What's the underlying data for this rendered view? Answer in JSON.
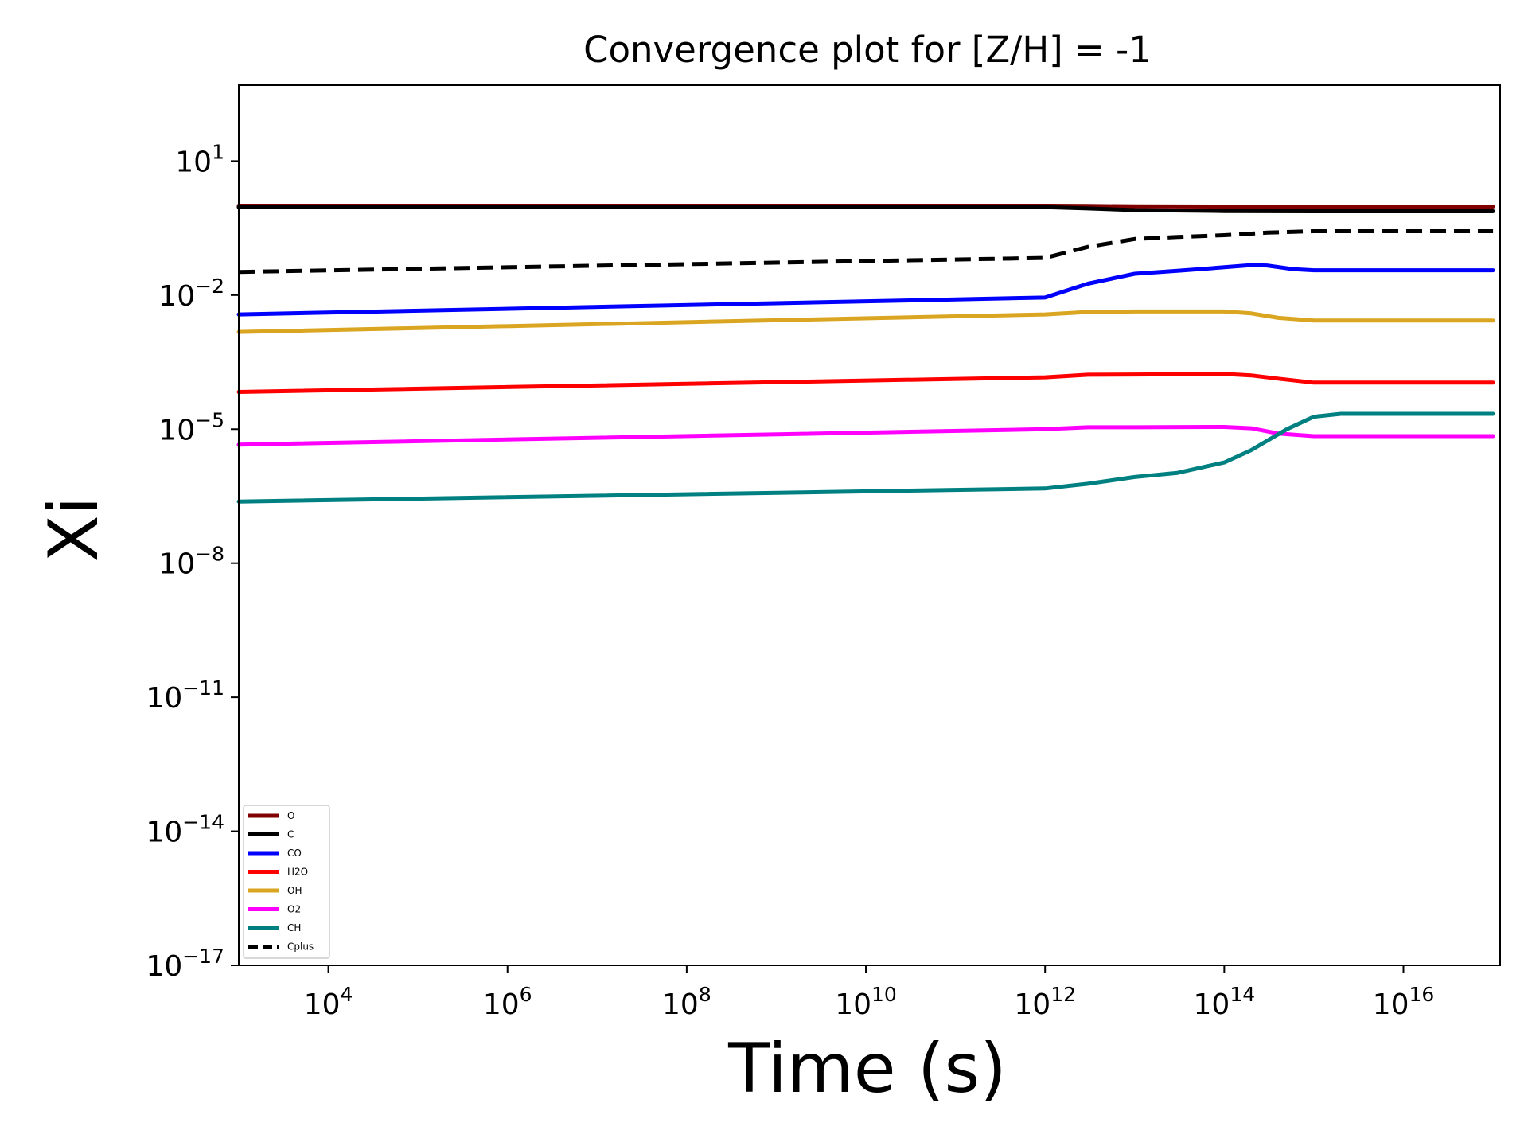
{
  "chart_data": {
    "type": "line",
    "title": "Convergence plot for [Z/H] = -1",
    "xlabel": "Time (s)",
    "ylabel": "Xi",
    "xscale": "log",
    "yscale": "log",
    "xlim": [
      1000,
      1.2e+17
    ],
    "ylim": [
      1e-17,
      500
    ],
    "xticks": [
      {
        "value": 10000.0,
        "base": "10",
        "exp": "4"
      },
      {
        "value": 1000000.0,
        "base": "10",
        "exp": "6"
      },
      {
        "value": 100000000.0,
        "base": "10",
        "exp": "8"
      },
      {
        "value": 10000000000.0,
        "base": "10",
        "exp": "10"
      },
      {
        "value": 1000000000000.0,
        "base": "10",
        "exp": "12"
      },
      {
        "value": 100000000000000.0,
        "base": "10",
        "exp": "14"
      },
      {
        "value": 1e+16,
        "base": "10",
        "exp": "16"
      }
    ],
    "yticks": [
      {
        "value": 10,
        "base": "10",
        "exp": "1"
      },
      {
        "value": 0.01,
        "base": "10",
        "exp": "−2"
      },
      {
        "value": 1e-05,
        "base": "10",
        "exp": "−5"
      },
      {
        "value": 1e-08,
        "base": "10",
        "exp": "−8"
      },
      {
        "value": 1e-11,
        "base": "10",
        "exp": "−11"
      },
      {
        "value": 1e-14,
        "base": "10",
        "exp": "−14"
      },
      {
        "value": 1e-17,
        "base": "10",
        "exp": "−17"
      }
    ],
    "grid": false,
    "legend_position": "bottom-left",
    "series": [
      {
        "name": "O",
        "color": "#800000",
        "dash": false,
        "x": [
          1000,
          1000000000000.0,
          3000000000000.0,
          10000000000000.0,
          100000000000000.0,
          1000000000000000.0,
          1e+17
        ],
        "y": [
          1.0,
          1.0,
          0.99,
          0.97,
          0.96,
          0.96,
          0.96
        ]
      },
      {
        "name": "C",
        "color": "#000000",
        "dash": false,
        "x": [
          1000,
          1000000000000.0,
          3000000000000.0,
          10000000000000.0,
          100000000000000.0,
          1000000000000000.0,
          1e+17
        ],
        "y": [
          0.93,
          0.93,
          0.87,
          0.8,
          0.76,
          0.75,
          0.75
        ]
      },
      {
        "name": "CO",
        "color": "#0000ff",
        "dash": false,
        "x": [
          1000,
          1000000000000.0,
          3000000000000.0,
          10000000000000.0,
          30000000000000.0,
          100000000000000.0,
          200000000000000.0,
          300000000000000.0,
          600000000000000.0,
          1000000000000000.0,
          1e+17
        ],
        "y": [
          0.0037,
          0.0088,
          0.018,
          0.03,
          0.035,
          0.042,
          0.047,
          0.046,
          0.038,
          0.036,
          0.036
        ]
      },
      {
        "name": "H2O",
        "color": "#ff0000",
        "dash": false,
        "x": [
          1000,
          1000000000000.0,
          3000000000000.0,
          10000000000000.0,
          100000000000000.0,
          200000000000000.0,
          400000000000000.0,
          1000000000000000.0,
          1e+17
        ],
        "y": [
          6.8e-05,
          0.000145,
          0.000165,
          0.000167,
          0.000172,
          0.00016,
          0.000135,
          0.00011,
          0.00011
        ]
      },
      {
        "name": "OH",
        "color": "#daa520",
        "dash": false,
        "x": [
          1000,
          1000000000000.0,
          3000000000000.0,
          10000000000000.0,
          100000000000000.0,
          200000000000000.0,
          400000000000000.0,
          1000000000000000.0,
          1e+17
        ],
        "y": [
          0.0015,
          0.0037,
          0.0042,
          0.0043,
          0.0043,
          0.0039,
          0.0031,
          0.0027,
          0.0027
        ]
      },
      {
        "name": "O2",
        "color": "#ff00ff",
        "dash": false,
        "x": [
          1000,
          1000000000000.0,
          3000000000000.0,
          10000000000000.0,
          100000000000000.0,
          200000000000000.0,
          400000000000000.0,
          1000000000000000.0,
          1e+17
        ],
        "y": [
          4.5e-06,
          1e-05,
          1.1e-05,
          1.1e-05,
          1.12e-05,
          1.05e-05,
          8e-06,
          7e-06,
          7e-06
        ]
      },
      {
        "name": "CH",
        "color": "#008080",
        "dash": false,
        "x": [
          1000,
          1000000000000.0,
          3000000000000.0,
          10000000000000.0,
          30000000000000.0,
          100000000000000.0,
          200000000000000.0,
          500000000000000.0,
          1000000000000000.0,
          2000000000000000.0,
          1e+17
        ],
        "y": [
          2.4e-07,
          4.7e-07,
          6e-07,
          8.5e-07,
          1.05e-06,
          1.8e-06,
          3.4e-06,
          1e-05,
          1.9e-05,
          2.2e-05,
          2.2e-05
        ]
      },
      {
        "name": "Cplus",
        "color": "#000000",
        "dash": true,
        "x": [
          1000,
          1000000000000.0,
          3000000000000.0,
          10000000000000.0,
          30000000000000.0,
          100000000000000.0,
          300000000000000.0,
          1000000000000000.0,
          1e+17
        ],
        "y": [
          0.033,
          0.068,
          0.12,
          0.18,
          0.2,
          0.22,
          0.25,
          0.27,
          0.27
        ]
      }
    ]
  }
}
